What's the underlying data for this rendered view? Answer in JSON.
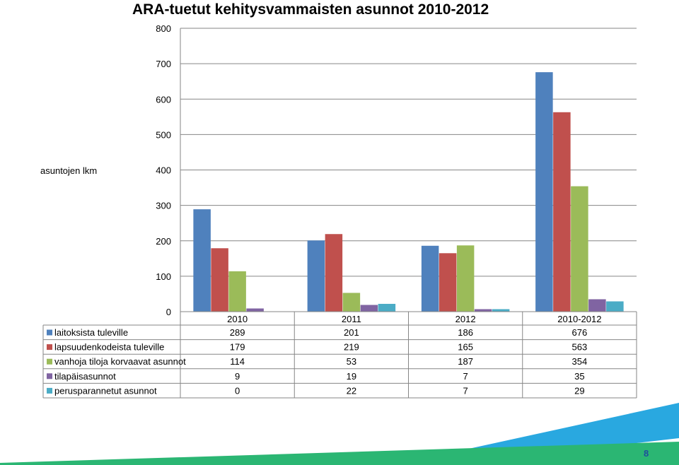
{
  "chart_data": {
    "type": "bar",
    "title": "ARA-tuetut kehitysvammaisten asunnot  2010-2012",
    "ylabel": "asuntojen lkm",
    "xlabel": "",
    "categories": [
      "2010",
      "2011",
      "2012",
      "2010-2012"
    ],
    "ylim": [
      0,
      800
    ],
    "yticks": [
      0,
      100,
      200,
      300,
      400,
      500,
      600,
      700,
      800
    ],
    "grid": true,
    "legend": "data-table",
    "series": [
      {
        "name": "laitoksista tuleville",
        "color": "#4f81bd",
        "values": [
          289,
          201,
          186,
          676
        ]
      },
      {
        "name": "lapsuudenkodeista tuleville",
        "color": "#c0504d",
        "values": [
          179,
          219,
          165,
          563
        ]
      },
      {
        "name": "vanhoja tiloja korvaavat asunnot",
        "color": "#9bbb59",
        "values": [
          114,
          53,
          187,
          354
        ]
      },
      {
        "name": "tilapäisasunnot",
        "color": "#8064a2",
        "values": [
          9,
          19,
          7,
          35
        ]
      },
      {
        "name": "perusparannetut asunnot",
        "color": "#4bacc6",
        "values": [
          0,
          22,
          7,
          29
        ]
      }
    ]
  },
  "page_number": "8",
  "decor_colors": [
    "#29a8e0",
    "#2bb673"
  ]
}
